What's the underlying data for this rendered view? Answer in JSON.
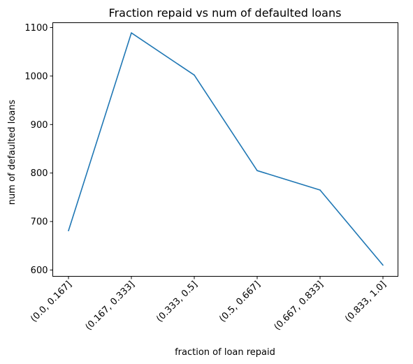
{
  "chart_data": {
    "type": "line",
    "title": "Fraction repaid vs num of defaulted loans",
    "xlabel": "fraction of loan repaid",
    "ylabel": "num of defaulted loans",
    "categories": [
      "(0.0, 0.167]",
      "(0.167, 0.333]",
      "(0.333, 0.5]",
      "(0.5, 0.667]",
      "(0.667, 0.833]",
      "(0.833, 1.0]"
    ],
    "values": [
      681,
      1089,
      1002,
      805,
      765,
      610
    ],
    "ylim": [
      587,
      1110
    ],
    "yticks": [
      600,
      700,
      800,
      900,
      1000,
      1100
    ],
    "ytick_labels": [
      "600",
      "700",
      "800",
      "900",
      "1000",
      "1100"
    ],
    "grid": false,
    "colors": {
      "line": "#1f77b4"
    }
  }
}
